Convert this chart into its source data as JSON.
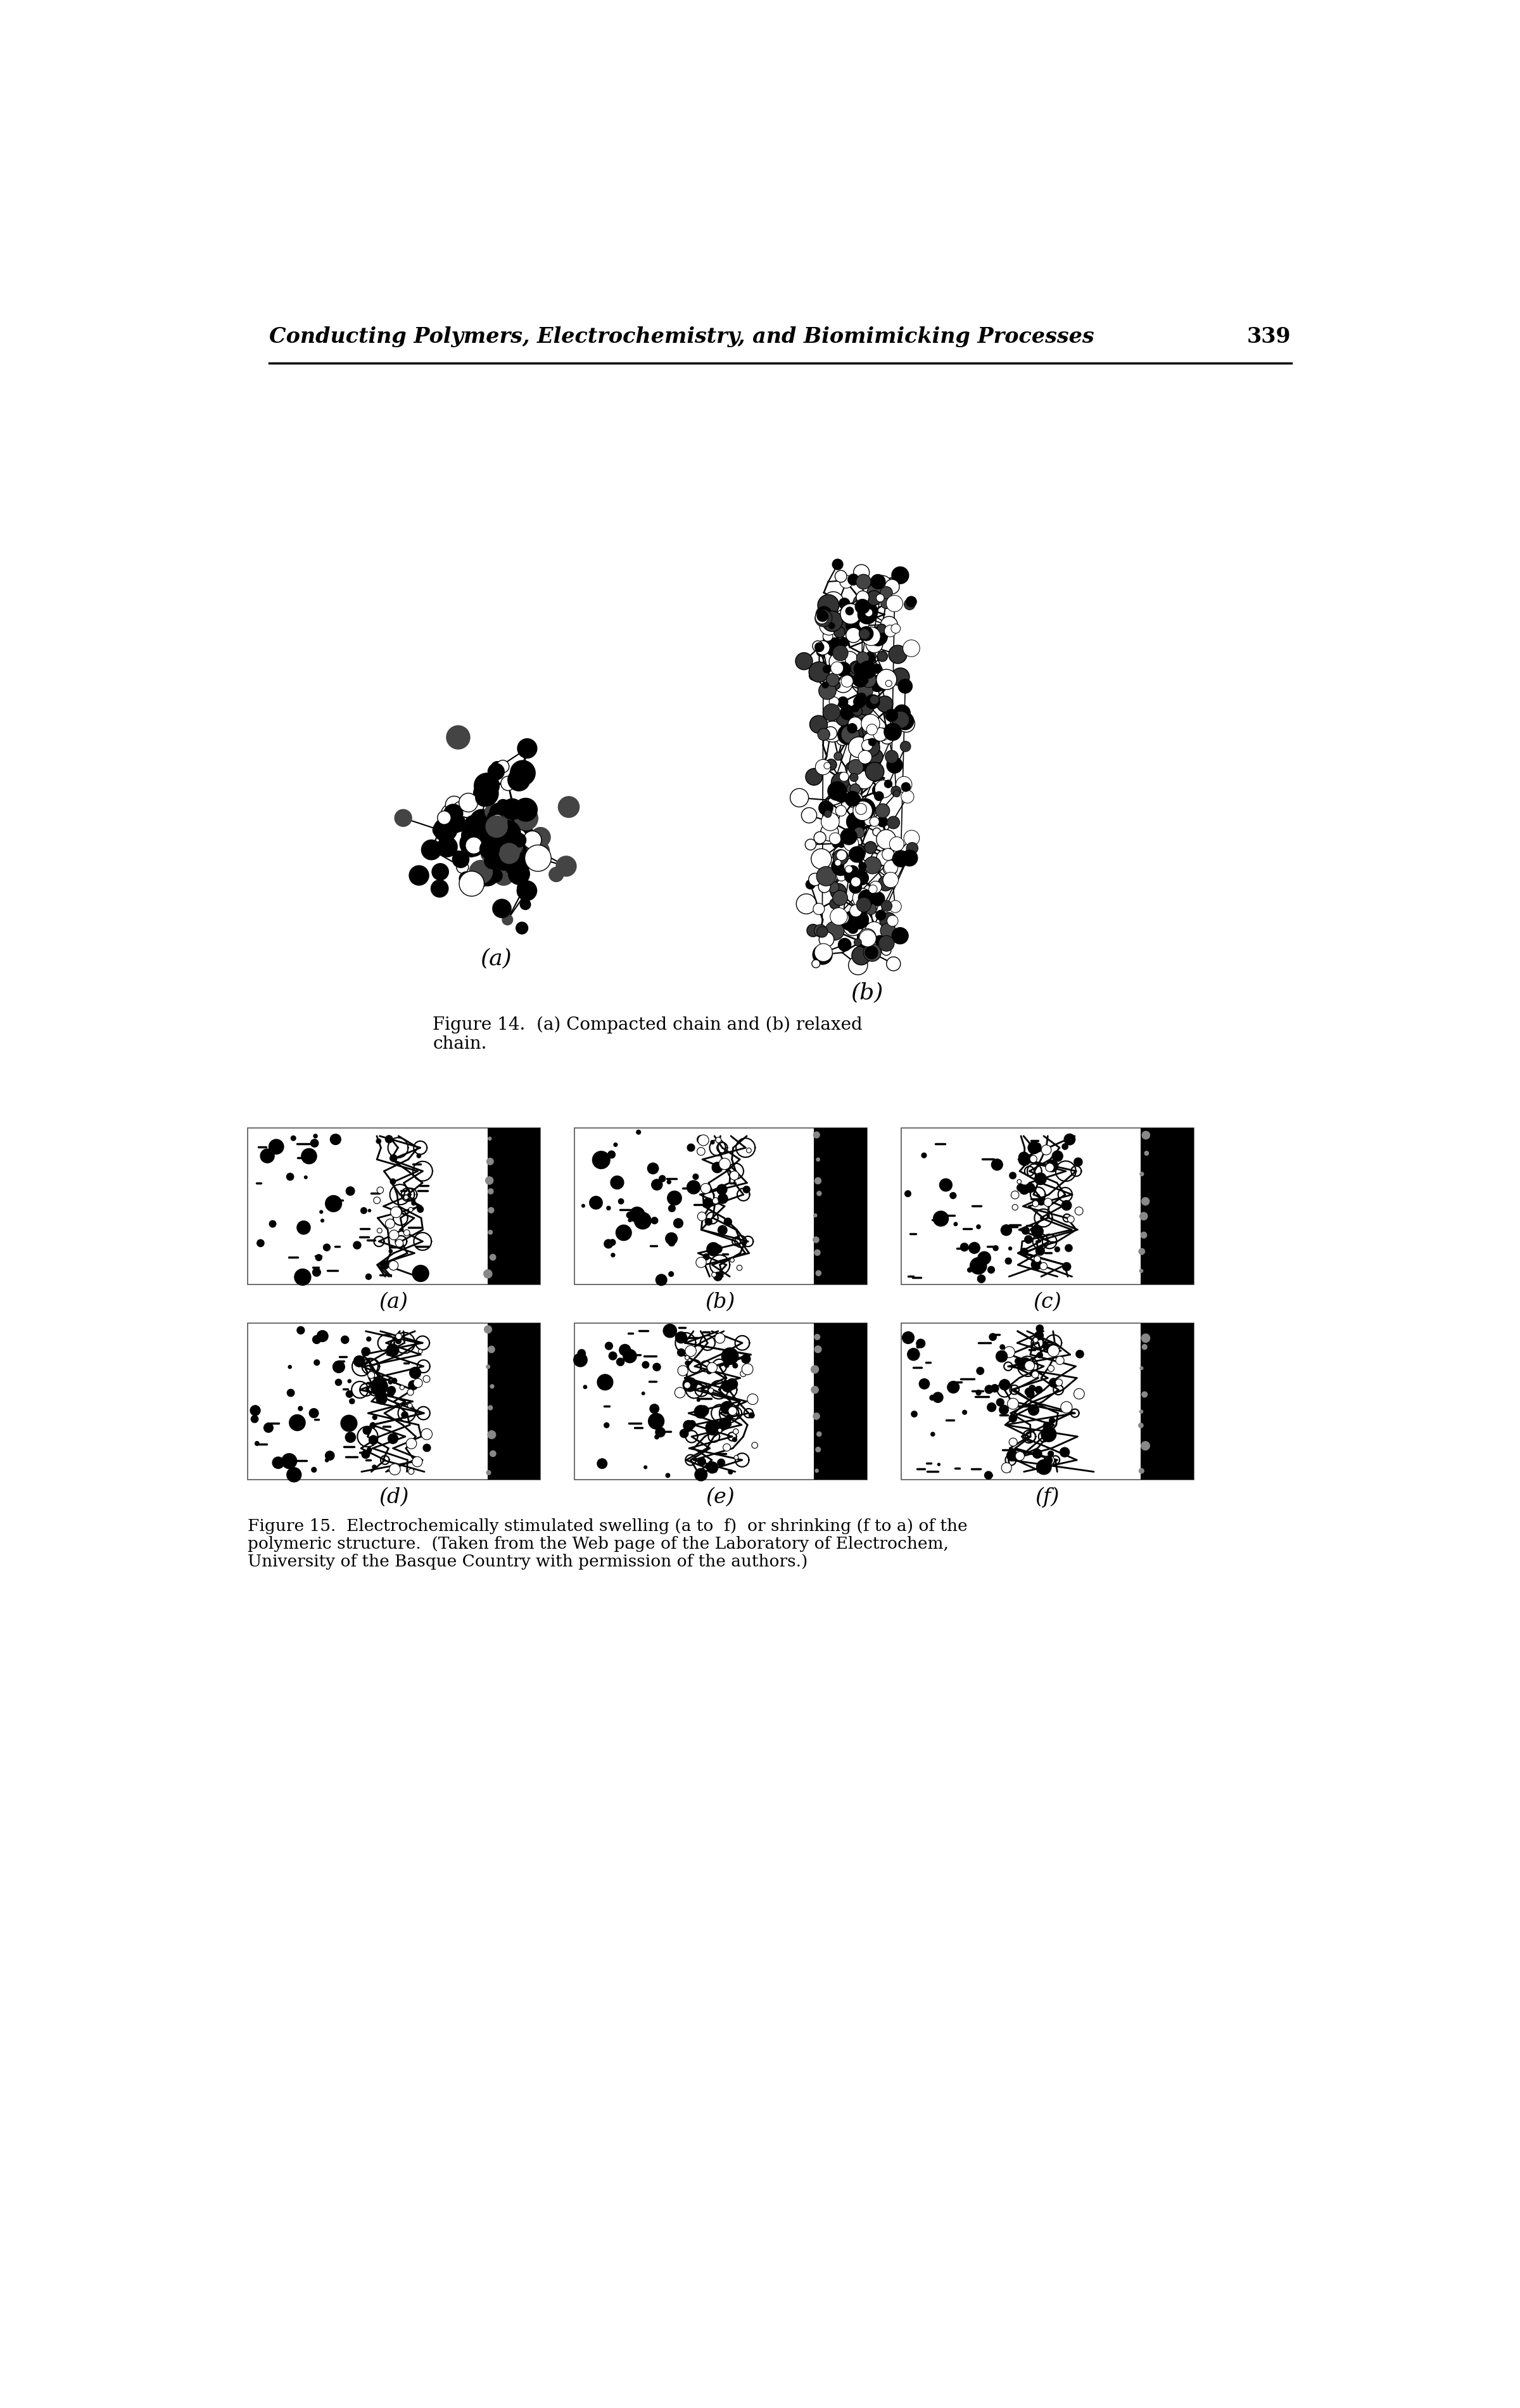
{
  "bg_color": "#ffffff",
  "header_text": "Conducting Polymers, Electrochemistry, and Biomimicking Processes",
  "page_number": "339",
  "fig14_caption_line1": "Figure 14.  (a) Compacted chain and (b) relaxed",
  "fig14_caption_line2": "chain.",
  "fig15_caption_line1": "Figure 15.  Electrochemically stimulated swelling (a to  f)  or shrinking (f to a) of the",
  "fig15_caption_line2": "polymeric structure.  (Taken from the Web page of the Laboratory of Electrochem,",
  "fig15_caption_line3": "University of the Basque Country with permission of the authors.)",
  "label_a": "(a)",
  "label_b": "(b)",
  "label_c": "(c)",
  "label_d": "(d)",
  "label_e": "(e)",
  "label_f": "(f)"
}
